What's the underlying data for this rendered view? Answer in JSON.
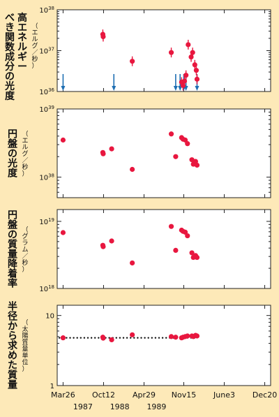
{
  "colors": {
    "background": "#fde9b8",
    "points": "#e8173f",
    "arrows": "#1f6fb3",
    "dotted_line": "#111111"
  },
  "x_axis": {
    "tick_labels": [
      "Mar26",
      "Oct12",
      "Apr29",
      "Nov15",
      "June3",
      "Dec20"
    ],
    "tick_years": [
      1987.23,
      1987.78,
      1988.33,
      1988.87,
      1989.42,
      1989.97
    ],
    "year_labels": [
      "1987",
      "1988",
      "1989"
    ],
    "year_positions": [
      1987.5,
      1988.0,
      1988.5
    ],
    "range": [
      1987.15,
      1990.05
    ]
  },
  "chart_data": [
    {
      "id": "hard",
      "type": "scatter",
      "ylabel": "高エネルギーべき関数成分の光度",
      "yunit": "（エルグ／秒）",
      "yscale": "log",
      "ylim": [
        1e+36,
        1e+38
      ],
      "ytick_labels": [
        "10^36",
        "10^37",
        "10^38"
      ],
      "points": [
        {
          "x": 1987.77,
          "y": 2.5e+37
        },
        {
          "x": 1987.775,
          "y": 2.2e+37
        },
        {
          "x": 1988.17,
          "y": 5.5e+36
        },
        {
          "x": 1988.7,
          "y": 9e+36
        },
        {
          "x": 1988.84,
          "y": 1.7e+36
        },
        {
          "x": 1988.86,
          "y": 1.4e+36
        },
        {
          "x": 1988.88,
          "y": 1.8e+36
        },
        {
          "x": 1988.9,
          "y": 2.5e+36
        },
        {
          "x": 1988.93,
          "y": 1.4e+37
        },
        {
          "x": 1988.97,
          "y": 7e+36
        },
        {
          "x": 1988.99,
          "y": 9e+36
        },
        {
          "x": 1989.02,
          "y": 4.5e+36
        },
        {
          "x": 1989.04,
          "y": 3.3e+36
        },
        {
          "x": 1989.05,
          "y": 2e+36
        }
      ],
      "arrows": [
        1987.23,
        1987.92,
        1988.76,
        1988.82,
        1988.87,
        1988.9,
        1989.05
      ]
    },
    {
      "id": "disk",
      "type": "scatter",
      "ylabel": "円盤の光度",
      "yunit": "（エルグ／秒）",
      "yscale": "log",
      "ylim": [
        5e+37,
        1e+39
      ],
      "ytick_labels": [
        "10^38",
        "10^39"
      ],
      "points": [
        {
          "x": 1987.23,
          "y": 3.5e+38
        },
        {
          "x": 1987.77,
          "y": 2.3e+38
        },
        {
          "x": 1987.775,
          "y": 2.2e+38
        },
        {
          "x": 1987.89,
          "y": 2.6e+38
        },
        {
          "x": 1988.17,
          "y": 1.3e+38
        },
        {
          "x": 1988.7,
          "y": 4.3e+38
        },
        {
          "x": 1988.76,
          "y": 2e+38
        },
        {
          "x": 1988.84,
          "y": 3.8e+38
        },
        {
          "x": 1988.86,
          "y": 3.6e+38
        },
        {
          "x": 1988.89,
          "y": 3.5e+38
        },
        {
          "x": 1988.92,
          "y": 3.1e+38
        },
        {
          "x": 1988.98,
          "y": 1.8e+38
        },
        {
          "x": 1989.0,
          "y": 1.55e+38
        },
        {
          "x": 1989.03,
          "y": 1.7e+38
        },
        {
          "x": 1989.05,
          "y": 1.5e+38
        }
      ]
    },
    {
      "id": "mdot",
      "type": "scatter",
      "ylabel": "円盤の質量降着率",
      "yunit": "（グラム／秒）",
      "yscale": "log",
      "ylim": [
        1e+18,
        1.5e+19
      ],
      "ytick_labels": [
        "10^18",
        "10^19"
      ],
      "points": [
        {
          "x": 1987.23,
          "y": 6.8e+18
        },
        {
          "x": 1987.77,
          "y": 4.4e+18
        },
        {
          "x": 1987.775,
          "y": 4.2e+18
        },
        {
          "x": 1987.89,
          "y": 5.1e+18
        },
        {
          "x": 1988.17,
          "y": 2.4e+18
        },
        {
          "x": 1988.7,
          "y": 8.4e+18
        },
        {
          "x": 1988.76,
          "y": 3.7e+18
        },
        {
          "x": 1988.84,
          "y": 7.4e+18
        },
        {
          "x": 1988.86,
          "y": 7.1e+18
        },
        {
          "x": 1988.89,
          "y": 6.9e+18
        },
        {
          "x": 1988.92,
          "y": 6.1e+18
        },
        {
          "x": 1988.98,
          "y": 3.4e+18
        },
        {
          "x": 1989.0,
          "y": 2.9e+18
        },
        {
          "x": 1989.03,
          "y": 3.1e+18
        },
        {
          "x": 1989.05,
          "y": 2.9e+18
        }
      ]
    },
    {
      "id": "mass",
      "type": "scatter",
      "ylabel": "半径から求めた質量",
      "yunit": "（太陽質量単位）",
      "yscale": "log",
      "ylim": [
        1,
        14
      ],
      "ytick_labels": [
        "1",
        "10"
      ],
      "reference_line_y": 4.8,
      "points": [
        {
          "x": 1987.23,
          "y": 4.8
        },
        {
          "x": 1987.77,
          "y": 4.9
        },
        {
          "x": 1987.775,
          "y": 4.75
        },
        {
          "x": 1987.89,
          "y": 4.5
        },
        {
          "x": 1988.17,
          "y": 5.3
        },
        {
          "x": 1988.7,
          "y": 5.0
        },
        {
          "x": 1988.76,
          "y": 4.9
        },
        {
          "x": 1988.84,
          "y": 4.8
        },
        {
          "x": 1988.86,
          "y": 4.9
        },
        {
          "x": 1988.89,
          "y": 5.0
        },
        {
          "x": 1988.92,
          "y": 5.1
        },
        {
          "x": 1988.98,
          "y": 5.1
        },
        {
          "x": 1989.0,
          "y": 5.0
        },
        {
          "x": 1989.03,
          "y": 5.2
        },
        {
          "x": 1989.05,
          "y": 5.1
        }
      ]
    }
  ]
}
